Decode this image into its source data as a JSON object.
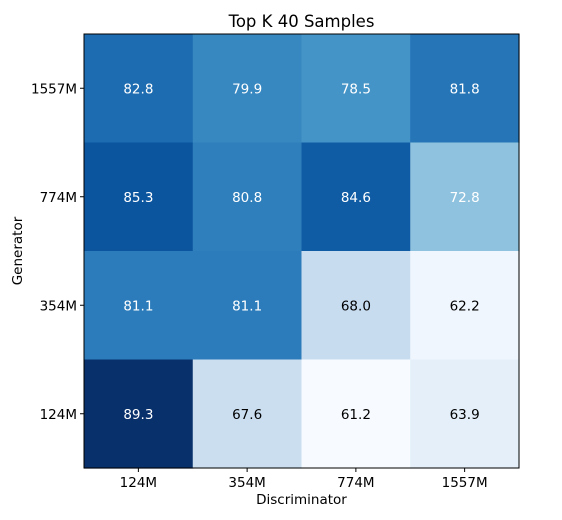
{
  "chart_data": {
    "type": "heatmap",
    "title": "Top K 40 Samples",
    "xlabel": "Discriminator",
    "ylabel": "Generator",
    "x_categories": [
      "124M",
      "354M",
      "774M",
      "1557M"
    ],
    "y_categories": [
      "1557M",
      "774M",
      "354M",
      "124M"
    ],
    "values": [
      [
        82.8,
        79.9,
        78.5,
        81.8
      ],
      [
        85.3,
        80.8,
        84.6,
        72.8
      ],
      [
        81.1,
        81.1,
        68.0,
        62.2
      ],
      [
        89.3,
        67.6,
        61.2,
        63.9
      ]
    ],
    "colormap": "Blues",
    "value_range": [
      61.2,
      89.3
    ],
    "grid": false
  }
}
